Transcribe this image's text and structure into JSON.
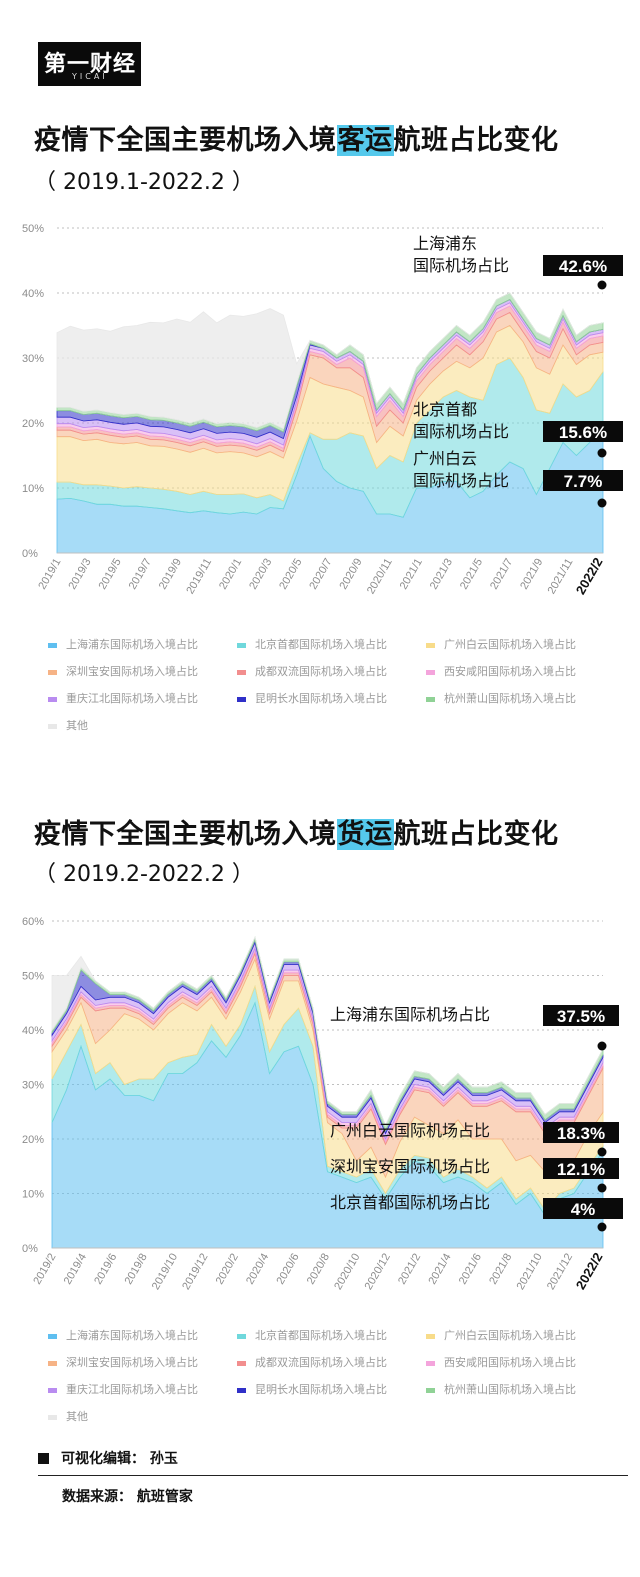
{
  "logo": {
    "text": "第一财经",
    "sub": "YICAI"
  },
  "titles": [
    {
      "pre": "疫情下全国主要机场入境",
      "hl": "客运",
      "post": "航班占比变化",
      "sub": "（ 2019.1-2022.2 ）"
    },
    {
      "pre": "疫情下全国主要机场入境",
      "hl": "货运",
      "post": "航班占比变化",
      "sub": "（ 2019.2-2022.2 ）"
    }
  ],
  "legend": [
    "上海浦东国际机场入境占比",
    "北京首都国际机场入境占比",
    "广州白云国际机场入境占比",
    "深圳宝安国际机场入境占比",
    "成都双流国际机场入境占比",
    "西安咸阳国际机场入境占比",
    "重庆江北国际机场入境占比",
    "昆明长水国际机场入境占比",
    "杭州萧山国际机场入境占比",
    "其他"
  ],
  "colors": [
    "#5fbff0",
    "#70d8dc",
    "#f8dc8a",
    "#f6b386",
    "#f28e8e",
    "#f4a4dc",
    "#b98cf0",
    "#3030c8",
    "#90d296",
    "#e8e8e8"
  ],
  "chart_data": [
    {
      "type": "area",
      "ylim": [
        0,
        50
      ],
      "yticks": [
        "0%",
        "10%",
        "20%",
        "30%",
        "40%",
        "50%"
      ],
      "xticks": [
        "2019/1",
        "2019/3",
        "2019/5",
        "2019/7",
        "2019/9",
        "2019/11",
        "2020/1",
        "2020/3",
        "2020/5",
        "2020/7",
        "2020/9",
        "2020/11",
        "2021/1",
        "2021/3",
        "2021/5",
        "2021/7",
        "2021/9",
        "2021/11",
        "2022/2"
      ],
      "series": [
        {
          "name": "上海浦东国际机场入境占比",
          "values": [
            8.3,
            8.4,
            8.0,
            7.5,
            7.5,
            7.2,
            7.2,
            7.0,
            6.8,
            6.5,
            6.2,
            6.5,
            6.2,
            6.0,
            6.3,
            6.0,
            7.0,
            6.8,
            12.0,
            18.0,
            13.0,
            11.0,
            10.0,
            9.5,
            6.0,
            6.0,
            5.5,
            10.0,
            10.0,
            11.0,
            11.0,
            8.5,
            9.5,
            12.0,
            14.0,
            13.0,
            9.0,
            13.0,
            17.0,
            15.0,
            17.0,
            20.0
          ]
        },
        {
          "name": "北京首都国际机场入境占比",
          "values": [
            2.6,
            2.5,
            2.5,
            3.0,
            2.8,
            2.8,
            3.0,
            3.0,
            3.0,
            3.0,
            2.8,
            3.0,
            2.8,
            3.0,
            2.8,
            2.5,
            2.0,
            1.2,
            1.5,
            0.5,
            4.5,
            6.5,
            8.5,
            8.5,
            7.0,
            9.0,
            8.5,
            10.0,
            12.0,
            13.0,
            14.0,
            15.5,
            14.0,
            17.0,
            16.0,
            14.0,
            13.0,
            8.5,
            9.0,
            9.0,
            8.0,
            7.9
          ]
        },
        {
          "name": "广州白云国际机场入境占比",
          "values": [
            7.0,
            7.0,
            6.8,
            7.0,
            6.7,
            6.8,
            6.8,
            6.5,
            6.6,
            6.5,
            6.5,
            6.6,
            6.4,
            6.6,
            6.3,
            6.3,
            6.6,
            6.6,
            6.8,
            8.5,
            8.5,
            8.0,
            6.5,
            6.0,
            4.0,
            4.5,
            4.0,
            3.5,
            4.0,
            4.0,
            4.5,
            4.5,
            6.5,
            5.0,
            5.0,
            5.5,
            6.5,
            6.0,
            6.0,
            5.0,
            5.5,
            3.0
          ]
        },
        {
          "name": "深圳宝安国际机场入境占比",
          "values": [
            1.0,
            1.0,
            1.0,
            1.0,
            1.1,
            1.0,
            1.0,
            1.0,
            1.0,
            1.0,
            1.0,
            1.0,
            1.0,
            1.0,
            1.0,
            1.0,
            1.0,
            1.0,
            2.0,
            3.5,
            4.0,
            3.0,
            3.5,
            3.0,
            2.5,
            2.5,
            2.0,
            2.0,
            2.0,
            2.0,
            2.5,
            2.0,
            2.5,
            2.0,
            2.0,
            1.5,
            2.5,
            2.5,
            2.5,
            1.5,
            1.5,
            1.5
          ]
        },
        {
          "name": "成都双流国际机场入境占比",
          "values": [
            0.5,
            0.5,
            0.5,
            0.5,
            0.5,
            0.5,
            0.5,
            0.5,
            0.5,
            0.5,
            0.5,
            0.5,
            0.5,
            0.5,
            0.5,
            0.5,
            0.5,
            0.5,
            0.5,
            0.5,
            0.5,
            0.5,
            1.5,
            1.5,
            1.5,
            1.5,
            1.0,
            1.0,
            1.0,
            1.0,
            1.0,
            1.0,
            1.0,
            1.0,
            1.0,
            1.0,
            1.0,
            1.0,
            1.0,
            1.0,
            1.0,
            1.0
          ]
        },
        {
          "name": "西安咸阳国际机场入境占比",
          "values": [
            0.5,
            0.5,
            0.5,
            0.5,
            0.5,
            0.5,
            0.5,
            0.5,
            0.5,
            0.5,
            0.5,
            0.5,
            0.5,
            0.5,
            0.5,
            0.5,
            0.5,
            0.5,
            0.5,
            0.5,
            0.5,
            0.5,
            0.5,
            0.5,
            0.5,
            0.5,
            0.5,
            0.5,
            0.5,
            0.5,
            0.5,
            0.5,
            0.5,
            0.5,
            0.5,
            0.5,
            0.5,
            0.5,
            0.5,
            0.5,
            0.5,
            0.5
          ]
        },
        {
          "name": "重庆江北国际机场入境占比",
          "values": [
            1.0,
            1.0,
            1.0,
            1.0,
            1.0,
            1.0,
            1.0,
            1.0,
            1.0,
            1.0,
            1.0,
            1.0,
            1.0,
            1.0,
            1.0,
            1.0,
            1.0,
            1.0,
            0.8,
            0.5,
            0.5,
            0.5,
            0.5,
            0.5,
            0.5,
            0.5,
            0.5,
            0.5,
            0.5,
            0.5,
            0.5,
            0.5,
            0.5,
            0.5,
            0.5,
            0.5,
            0.5,
            0.5,
            0.5,
            0.5,
            0.5,
            0.5
          ]
        },
        {
          "name": "昆明长水国际机场入境占比",
          "values": [
            1.0,
            1.0,
            1.0,
            1.0,
            1.0,
            1.0,
            1.0,
            1.0,
            1.0,
            1.0,
            1.0,
            1.0,
            1.0,
            1.0,
            1.0,
            1.0,
            1.0,
            1.0,
            1.5,
            0.2,
            0.0,
            0.0,
            0.0,
            0.0,
            0.0,
            0.0,
            0.0,
            0.0,
            0.0,
            0.0,
            0.0,
            0.0,
            0.0,
            0.0,
            0.0,
            0.0,
            0.0,
            0.0,
            0.0,
            0.0,
            0.0,
            0.0
          ]
        },
        {
          "name": "杭州萧山国际机场入境占比",
          "values": [
            0.5,
            0.5,
            0.5,
            0.5,
            0.5,
            0.5,
            0.5,
            0.5,
            0.5,
            0.5,
            0.5,
            0.5,
            0.5,
            0.5,
            0.5,
            0.5,
            0.5,
            0.5,
            0.5,
            0.5,
            0.5,
            0.5,
            1.0,
            1.0,
            1.0,
            1.0,
            1.0,
            1.0,
            1.0,
            1.0,
            1.0,
            1.0,
            1.0,
            1.0,
            1.0,
            1.0,
            1.0,
            1.0,
            1.0,
            1.0,
            1.0,
            1.0
          ]
        },
        {
          "name": "其他",
          "values": [
            11.5,
            12.5,
            12.5,
            12.5,
            12.5,
            13.5,
            13.5,
            14.5,
            14.5,
            15.5,
            15.5,
            16.5,
            15.5,
            16.5,
            16.5,
            17.5,
            17.5,
            17.5,
            3.0,
            0.0,
            0.0,
            0.0,
            0.0,
            0.0,
            0.0,
            0.0,
            0.0,
            0.0,
            0.0,
            0.0,
            0.0,
            0.0,
            0.0,
            0.0,
            0.0,
            0.0,
            0.0,
            0.0,
            0.0,
            0.0,
            0.0,
            0.0
          ]
        }
      ],
      "annotations": [
        {
          "series": 0,
          "label": [
            "上海浦东",
            "国际机场占比"
          ],
          "value": "42.6%"
        },
        {
          "series": 1,
          "label": [
            "北京首都",
            "国际机场占比"
          ],
          "value": "15.6%"
        },
        {
          "series": 2,
          "label": [
            "广州白云",
            "国际机场占比"
          ],
          "value": "7.7%"
        }
      ]
    },
    {
      "type": "area",
      "ylim": [
        0,
        60
      ],
      "yticks": [
        "0%",
        "10%",
        "20%",
        "30%",
        "40%",
        "50%",
        "60%"
      ],
      "xticks": [
        "2019/2",
        "2019/4",
        "2019/6",
        "2019/8",
        "2019/10",
        "2019/12",
        "2020/2",
        "2020/4",
        "2020/6",
        "2020/8",
        "2020/10",
        "2020/12",
        "2021/2",
        "2021/4",
        "2021/6",
        "2021/8",
        "2021/10",
        "2021/12",
        "2022/2"
      ],
      "series": [
        {
          "name": "上海浦东国际机场入境占比",
          "values": [
            23.0,
            29.0,
            37.0,
            29.0,
            31.0,
            28.0,
            28.0,
            27.0,
            32.0,
            32.0,
            34.0,
            38.0,
            35.0,
            39.0,
            45.0,
            32.0,
            36.0,
            37.0,
            30.0,
            14.0,
            13.0,
            12.0,
            13.0,
            9.0,
            13.0,
            16.0,
            15.0,
            12.0,
            13.0,
            12.0,
            10.0,
            12.0,
            8.0,
            10.0,
            6.0,
            9.0,
            10.0,
            14.0,
            17.7
          ]
        },
        {
          "name": "北京首都国际机场入境占比",
          "values": [
            8.0,
            7.0,
            4.0,
            3.0,
            3.0,
            2.0,
            3.0,
            4.0,
            2.0,
            3.0,
            1.5,
            3.0,
            2.0,
            2.0,
            3.0,
            4.0,
            5.0,
            7.0,
            7.0,
            1.0,
            1.0,
            1.0,
            1.5,
            1.0,
            1.5,
            1.0,
            1.5,
            1.0,
            1.5,
            1.0,
            1.0,
            1.0,
            1.0,
            1.0,
            1.0,
            1.0,
            1.0,
            1.0,
            1.0
          ]
        },
        {
          "name": "广州白云国际机场入境占比",
          "values": [
            5.0,
            4.0,
            4.0,
            5.5,
            6.0,
            13.0,
            11.0,
            9.0,
            9.0,
            10.0,
            8.0,
            5.0,
            5.0,
            6.0,
            5.0,
            6.0,
            8.0,
            5.0,
            3.0,
            8.0,
            7.0,
            3.0,
            4.0,
            3.0,
            5.0,
            7.0,
            6.0,
            8.0,
            9.0,
            7.0,
            9.0,
            7.0,
            7.0,
            6.0,
            7.0,
            5.0,
            5.0,
            6.0,
            6.2
          ]
        },
        {
          "name": "深圳宝安国际机场入境占比",
          "values": [
            1.0,
            1.0,
            1.0,
            6.0,
            4.0,
            1.0,
            1.0,
            1.0,
            1.0,
            1.0,
            1.0,
            1.0,
            1.0,
            1.0,
            1.0,
            1.0,
            1.0,
            1.0,
            1.0,
            1.0,
            1.0,
            6.0,
            7.0,
            6.0,
            5.0,
            5.0,
            6.0,
            5.0,
            5.0,
            6.0,
            6.0,
            7.0,
            9.0,
            8.0,
            7.0,
            8.0,
            7.0,
            7.0,
            8.1
          ]
        },
        {
          "name": "成都双流国际机场入境占比",
          "values": [
            0.5,
            0.5,
            0.5,
            0.5,
            0.5,
            0.5,
            0.5,
            0.5,
            0.5,
            0.5,
            0.5,
            0.5,
            0.5,
            0.5,
            0.5,
            0.5,
            0.5,
            0.5,
            0.5,
            0.5,
            0.5,
            0.5,
            0.5,
            0.5,
            0.5,
            0.5,
            0.5,
            0.5,
            0.5,
            0.5,
            0.5,
            0.5,
            0.5,
            0.5,
            0.5,
            0.5,
            0.5,
            0.5,
            0.5
          ]
        },
        {
          "name": "西安咸阳国际机场入境占比",
          "values": [
            0.5,
            0.5,
            0.5,
            0.5,
            0.5,
            0.5,
            0.5,
            0.5,
            0.5,
            0.5,
            0.5,
            0.5,
            0.5,
            0.5,
            0.5,
            0.5,
            0.5,
            0.5,
            0.5,
            0.5,
            0.5,
            0.5,
            0.5,
            0.5,
            0.5,
            0.5,
            0.5,
            0.5,
            0.5,
            0.5,
            0.5,
            0.5,
            0.5,
            0.5,
            0.5,
            0.5,
            0.5,
            0.5,
            0.5
          ]
        },
        {
          "name": "重庆江北国际机场入境占比",
          "values": [
            1.0,
            1.0,
            1.0,
            1.0,
            1.0,
            1.0,
            1.0,
            1.0,
            1.0,
            1.0,
            1.0,
            1.0,
            1.0,
            1.0,
            1.0,
            1.0,
            1.0,
            1.0,
            1.0,
            1.0,
            1.0,
            1.0,
            1.0,
            1.0,
            1.0,
            1.0,
            1.0,
            1.0,
            1.0,
            1.0,
            1.0,
            1.0,
            1.0,
            1.0,
            1.0,
            1.0,
            1.0,
            1.0,
            1.0
          ]
        },
        {
          "name": "昆明长水国际机场入境占比",
          "values": [
            0.5,
            0.5,
            3.0,
            3.0,
            0.5,
            0.5,
            0.5,
            0.5,
            0.5,
            0.5,
            0.5,
            0.5,
            0.5,
            0.5,
            0.5,
            0.5,
            0.5,
            0.5,
            0.5,
            0.5,
            0.5,
            0.5,
            0.5,
            0.5,
            0.5,
            0.5,
            0.5,
            0.5,
            0.5,
            0.5,
            0.5,
            0.5,
            0.5,
            0.5,
            0.5,
            0.5,
            0.5,
            0.5,
            0.5
          ]
        },
        {
          "name": "杭州萧山国际机场入境占比",
          "values": [
            0.5,
            0.5,
            0.5,
            0.5,
            0.5,
            0.5,
            0.5,
            0.5,
            0.5,
            0.5,
            0.5,
            0.5,
            0.5,
            0.5,
            0.5,
            0.5,
            0.5,
            0.5,
            0.5,
            0.5,
            0.5,
            0.5,
            1.0,
            1.0,
            1.0,
            1.0,
            1.0,
            1.0,
            1.0,
            1.0,
            1.0,
            1.0,
            1.0,
            1.0,
            1.0,
            1.0,
            1.0,
            1.0,
            1.0
          ]
        },
        {
          "name": "其他",
          "values": [
            10.0,
            6.0,
            2.0,
            0.0,
            0.0,
            0.0,
            0.0,
            0.0,
            0.0,
            0.0,
            0.0,
            0.0,
            0.0,
            0.0,
            0.0,
            0.0,
            0.0,
            0.0,
            0.0,
            0.0,
            0.0,
            0.0,
            0.0,
            0.0,
            0.0,
            0.0,
            0.0,
            0.0,
            0.0,
            0.0,
            0.0,
            0.0,
            0.0,
            0.0,
            0.0,
            0.0,
            0.0,
            0.0,
            0.0
          ]
        }
      ],
      "annotations": [
        {
          "series": 0,
          "label": [
            "上海浦东国际机场占比"
          ],
          "value": "37.5%"
        },
        {
          "series": 2,
          "label": [
            "广州白云国际机场占比"
          ],
          "value": "18.3%"
        },
        {
          "series": 3,
          "label": [
            "深圳宝安国际机场占比"
          ],
          "value": "12.1%"
        },
        {
          "series": 1,
          "label": [
            "北京首都国际机场占比"
          ],
          "value": "4%"
        }
      ]
    }
  ],
  "footer": {
    "editor": "可视化编辑：  孙玉",
    "source": "数据来源：  航班管家"
  }
}
